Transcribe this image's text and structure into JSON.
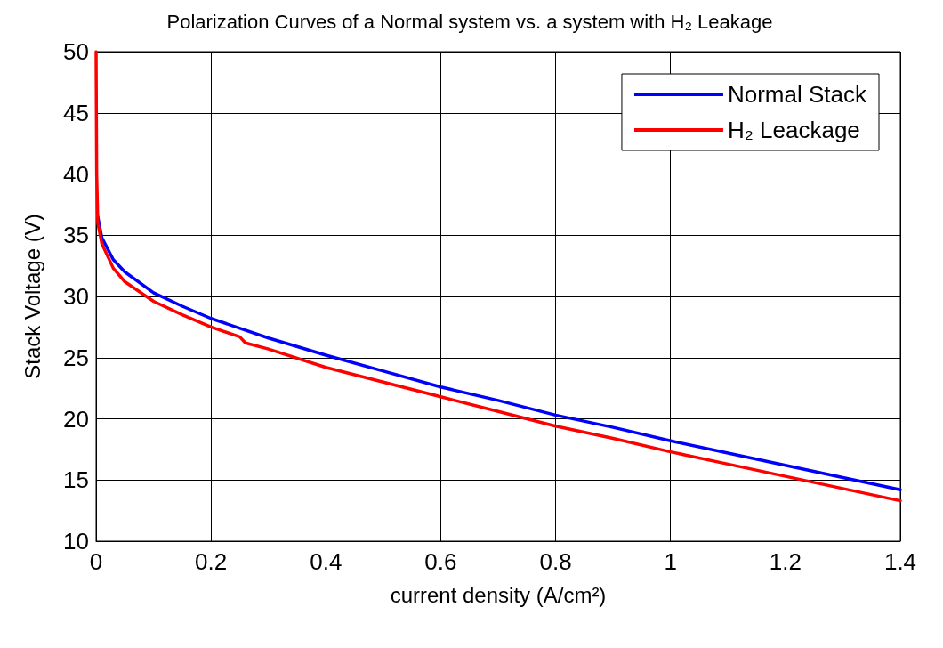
{
  "chart_data": {
    "type": "line",
    "title": "Polarization Curves of a Normal system vs. a system with H₂ Leakage",
    "xlabel": "current density (A/cm²)",
    "ylabel": "Stack Voltage (V)",
    "xlim": [
      0,
      1.4
    ],
    "xticks": [
      0,
      0.2,
      0.4,
      0.6,
      0.8,
      1,
      1.2,
      1.4
    ],
    "ylim": [
      10,
      50
    ],
    "yticks": [
      10,
      15,
      20,
      25,
      30,
      35,
      40,
      45,
      50
    ],
    "grid": true,
    "legend": "top right",
    "marker": "none",
    "line_style": "solid",
    "series": [
      {
        "name": "Normal Stack",
        "color": "#0000ff",
        "x": [
          0.003,
          0.01,
          0.03,
          0.05,
          0.1,
          0.15,
          0.2,
          0.3,
          0.4,
          0.5,
          0.6,
          0.7,
          0.8,
          0.9,
          1.0,
          1.1,
          1.2,
          1.3,
          1.4
        ],
        "values": [
          36.5,
          34.8,
          33.0,
          32.0,
          30.3,
          29.2,
          28.2,
          26.6,
          25.2,
          23.9,
          22.6,
          21.5,
          20.3,
          19.3,
          18.2,
          17.2,
          16.2,
          15.2,
          14.2
        ]
      },
      {
        "name": "H₂ Leackage",
        "color": "#ff0000",
        "x": [
          0,
          0.001,
          0.003,
          0.01,
          0.03,
          0.05,
          0.1,
          0.15,
          0.2,
          0.25,
          0.26,
          0.3,
          0.4,
          0.5,
          0.6,
          0.7,
          0.8,
          0.9,
          1.0,
          1.1,
          1.2,
          1.3,
          1.4
        ],
        "values": [
          50,
          40,
          36,
          34.3,
          32.3,
          31.2,
          29.6,
          28.5,
          27.5,
          26.7,
          26.2,
          25.7,
          24.2,
          23.0,
          21.8,
          20.6,
          19.4,
          18.4,
          17.3,
          16.3,
          15.3,
          14.3,
          13.3
        ]
      }
    ]
  }
}
